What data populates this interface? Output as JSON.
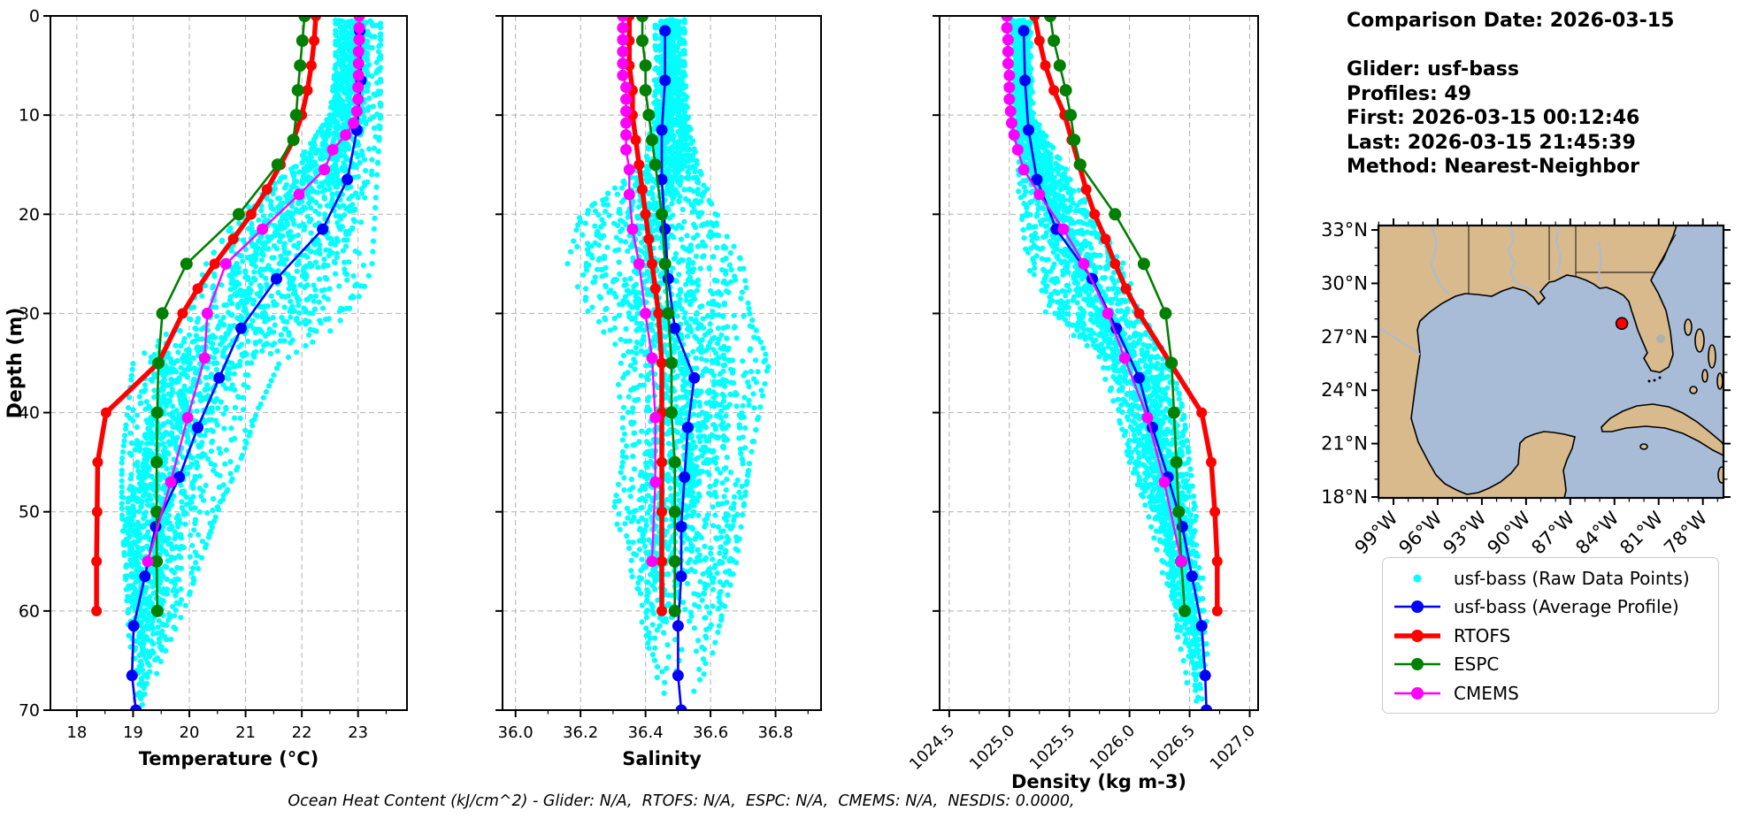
{
  "info": {
    "lines": [
      "Comparison Date: 2026-03-15",
      "",
      "Glider: usf-bass",
      "Profiles: 49",
      "First: 2026-03-15 00:12:46",
      "Last: 2026-03-15 21:45:39",
      "Method: Nearest-Neighbor"
    ]
  },
  "caption": "Ocean Heat Content (kJ/cm^2) - Glider: N/A,  RTOFS: N/A,  ESPC: N/A,  CMEMS: N/A,  NESDIS: 0.0000,",
  "legend": {
    "items": [
      {
        "label": "usf-bass (Raw Data Points)",
        "color": "#00ffff",
        "type": "scatter"
      },
      {
        "label": "usf-bass (Average Profile)",
        "color": "#0000ff",
        "type": "line",
        "lw": 2.6
      },
      {
        "label": "RTOFS",
        "color": "#ff0000",
        "type": "line",
        "lw": 5.5
      },
      {
        "label": "ESPC",
        "color": "#008000",
        "type": "line",
        "lw": 2.6
      },
      {
        "label": "CMEMS",
        "color": "#ff00ff",
        "type": "line",
        "lw": 2.4
      }
    ]
  },
  "map": {
    "lat_labels": [
      "33°N",
      "30°N",
      "27°N",
      "24°N",
      "21°N",
      "18°N"
    ],
    "lat_ticks": [
      33,
      30,
      27,
      24,
      21,
      18
    ],
    "lon_labels": [
      "99°W",
      "96°W",
      "93°W",
      "90°W",
      "87°W",
      "84°W",
      "81°W",
      "78°W"
    ],
    "lon_ticks": [
      99,
      96,
      93,
      90,
      87,
      84,
      81,
      78
    ],
    "extent": {
      "lon_west": 100.02,
      "lon_east": 76.6,
      "lat_north": 33.25,
      "lat_south": 17.95
    },
    "glider_marker": {
      "lon_w": 83.5,
      "lat_n": 27.75,
      "color": "#ff0000"
    },
    "land_color": "#d8ba8c",
    "water_color": "#a8bcd8",
    "lake_color": "#b0b0b0"
  },
  "chart_data": {
    "type": "line",
    "ylabel": "Depth (m)",
    "ylim": [
      0,
      70
    ],
    "yticks": [
      0,
      10,
      20,
      30,
      40,
      50,
      60,
      70
    ],
    "grid": "dashed",
    "profiles_count": 49,
    "series_meta": [
      {
        "key": "raw",
        "name": "usf-bass (Raw Data Points)",
        "color": "#00ffff"
      },
      {
        "key": "avg",
        "name": "usf-bass (Average Profile)",
        "color": "#0000ff"
      },
      {
        "key": "rtofs",
        "name": "RTOFS",
        "color": "#ff0000"
      },
      {
        "key": "espc",
        "name": "ESPC",
        "color": "#008000"
      },
      {
        "key": "cmems",
        "name": "CMEMS",
        "color": "#ff00ff"
      }
    ],
    "panels": [
      {
        "id": "temperature",
        "xlabel": "Temperature (°C)",
        "xlim": [
          17.53,
          23.87
        ],
        "xticks": [
          18,
          19,
          20,
          21,
          22,
          23
        ],
        "xtick_labels": [
          "18",
          "19",
          "20",
          "21",
          "22",
          "23"
        ],
        "xminor": 0.5,
        "rotate_xticklabels": false,
        "series": {
          "avg": {
            "depths": [
              1.5,
              6.5,
              11.5,
              16.5,
              21.5,
              26.5,
              31.5,
              36.5,
              41.5,
              46.5,
              51.5,
              56.5,
              61.5,
              66.5,
              70
            ],
            "values": [
              23.03,
              23.05,
              22.98,
              22.81,
              22.37,
              21.55,
              20.92,
              20.53,
              20.15,
              19.82,
              19.4,
              19.21,
              19.01,
              18.98,
              19.05
            ]
          },
          "rtofs": {
            "depths": [
              0,
              2.5,
              5,
              7.5,
              10,
              12.5,
              15,
              17.5,
              20,
              22.5,
              25,
              27.5,
              30,
              35,
              40,
              45,
              50,
              55,
              60
            ],
            "values": [
              22.25,
              22.22,
              22.17,
              22.1,
              22.0,
              21.85,
              21.62,
              21.38,
              21.1,
              20.78,
              20.45,
              20.15,
              19.88,
              19.45,
              18.52,
              18.37,
              18.36,
              18.35,
              18.35
            ]
          },
          "espc": {
            "depths": [
              0,
              2.5,
              5,
              7.5,
              10,
              12.5,
              15,
              20,
              25,
              30,
              35,
              40,
              45,
              50,
              55,
              60
            ],
            "values": [
              22.05,
              22.01,
              21.97,
              21.93,
              21.9,
              21.85,
              21.57,
              20.88,
              19.95,
              19.52,
              19.45,
              19.43,
              19.42,
              19.42,
              19.42,
              19.43
            ]
          },
          "cmems": {
            "depths": [
              0,
              1.2,
              2.4,
              3.6,
              4.8,
              6,
              7.2,
              8.4,
              9.6,
              10.8,
              12,
              13.5,
              15.5,
              18,
              21.5,
              25,
              30,
              34.5,
              40.5,
              47,
              55
            ],
            "values": [
              23.02,
              23.02,
              23.02,
              23.01,
              23.01,
              23.01,
              23.0,
              23.0,
              22.98,
              22.92,
              22.78,
              22.55,
              22.4,
              21.95,
              21.3,
              20.65,
              20.32,
              20.27,
              19.97,
              19.67,
              19.26
            ]
          }
        },
        "raw_envelope": {
          "depths": [
            0,
            5,
            10,
            15,
            20,
            25,
            30,
            35,
            40,
            45,
            50,
            55,
            60,
            65,
            70
          ],
          "min": [
            22.6,
            22.6,
            22.5,
            21.9,
            20.9,
            20.3,
            20.0,
            19.0,
            18.9,
            18.8,
            18.8,
            18.85,
            18.9,
            18.95,
            19.0
          ],
          "max": [
            23.4,
            23.4,
            23.4,
            23.35,
            23.3,
            23.25,
            23.0,
            21.6,
            21.2,
            20.9,
            20.5,
            20.2,
            19.9,
            19.5,
            19.2
          ]
        }
      },
      {
        "id": "salinity",
        "xlabel": "Salinity",
        "xlim": [
          35.96,
          36.94
        ],
        "xticks": [
          36.0,
          36.2,
          36.4,
          36.6,
          36.8
        ],
        "xtick_labels": [
          "36.0",
          "36.2",
          "36.4",
          "36.6",
          "36.8"
        ],
        "xminor": 0.1,
        "rotate_xticklabels": false,
        "series": {
          "avg": {
            "depths": [
              1.5,
              6.5,
              11.5,
              16.5,
              21.5,
              26.5,
              31.5,
              36.5,
              41.5,
              46.5,
              51.5,
              56.5,
              61.5,
              66.5,
              70
            ],
            "values": [
              36.46,
              36.46,
              36.45,
              36.45,
              36.46,
              36.47,
              36.49,
              36.55,
              36.53,
              36.52,
              36.51,
              36.51,
              36.5,
              36.5,
              36.51
            ]
          },
          "rtofs": {
            "depths": [
              0,
              2.5,
              5,
              7.5,
              10,
              12.5,
              15,
              17.5,
              20,
              22.5,
              25,
              27.5,
              30,
              35,
              40,
              45,
              50,
              55,
              60
            ],
            "values": [
              36.35,
              36.35,
              36.35,
              36.36,
              36.36,
              36.37,
              36.38,
              36.39,
              36.4,
              36.41,
              36.42,
              36.43,
              36.44,
              36.45,
              36.45,
              36.45,
              36.45,
              36.45,
              36.45
            ]
          },
          "espc": {
            "depths": [
              0,
              2.5,
              5,
              7.5,
              10,
              12.5,
              15,
              20,
              25,
              30,
              35,
              40,
              45,
              50,
              55,
              60
            ],
            "values": [
              36.39,
              36.39,
              36.4,
              36.4,
              36.41,
              36.42,
              36.43,
              36.45,
              36.46,
              36.47,
              36.48,
              36.48,
              36.49,
              36.49,
              36.49,
              36.49
            ]
          },
          "cmems": {
            "depths": [
              0,
              1.2,
              2.4,
              3.6,
              4.8,
              6,
              7.2,
              8.4,
              9.6,
              10.8,
              12,
              13.5,
              15.5,
              18,
              21.5,
              25,
              30,
              34.5,
              40.5,
              47,
              55
            ],
            "values": [
              36.33,
              36.33,
              36.33,
              36.33,
              36.33,
              36.33,
              36.34,
              36.34,
              36.34,
              36.34,
              36.34,
              36.34,
              36.35,
              36.35,
              36.36,
              36.38,
              36.4,
              36.42,
              36.43,
              36.43,
              36.42
            ]
          }
        },
        "raw_envelope": {
          "depths": [
            0,
            5,
            10,
            15,
            20,
            25,
            30,
            35,
            40,
            45,
            50,
            55,
            60,
            65,
            70
          ],
          "min": [
            36.43,
            36.43,
            36.42,
            36.4,
            36.2,
            36.16,
            36.22,
            36.3,
            36.33,
            36.33,
            36.3,
            36.35,
            36.38,
            36.42,
            36.45
          ],
          "max": [
            36.52,
            36.52,
            36.53,
            36.56,
            36.62,
            36.7,
            36.72,
            36.78,
            36.75,
            36.72,
            36.7,
            36.68,
            36.64,
            36.6,
            36.55
          ]
        }
      },
      {
        "id": "density",
        "xlabel": "Density (kg m-3)",
        "xlim": [
          1024.42,
          1027.07
        ],
        "xticks": [
          1024.5,
          1025.0,
          1025.5,
          1026.0,
          1026.5,
          1027.0
        ],
        "xtick_labels": [
          "1024.5",
          "1025.0",
          "1025.5",
          "1026.0",
          "1026.5",
          "1027.0"
        ],
        "xminor": 0.25,
        "rotate_xticklabels": true,
        "series": {
          "avg": {
            "depths": [
              1.5,
              6.5,
              11.5,
              16.5,
              21.5,
              26.5,
              31.5,
              36.5,
              41.5,
              46.5,
              51.5,
              56.5,
              61.5,
              66.5,
              70
            ],
            "values": [
              1025.12,
              1025.13,
              1025.16,
              1025.23,
              1025.39,
              1025.69,
              1025.89,
              1026.08,
              1026.19,
              1026.32,
              1026.44,
              1026.52,
              1026.6,
              1026.63,
              1026.64
            ]
          },
          "rtofs": {
            "depths": [
              0,
              2.5,
              5,
              7.5,
              10,
              12.5,
              15,
              17.5,
              20,
              22.5,
              25,
              27.5,
              30,
              35,
              40,
              45,
              50,
              55,
              60
            ],
            "values": [
              1025.21,
              1025.25,
              1025.3,
              1025.37,
              1025.46,
              1025.52,
              1025.58,
              1025.64,
              1025.71,
              1025.8,
              1025.88,
              1025.97,
              1026.08,
              1026.34,
              1026.6,
              1026.68,
              1026.71,
              1026.73,
              1026.73
            ]
          },
          "espc": {
            "depths": [
              0,
              2.5,
              5,
              7.5,
              10,
              12.5,
              15,
              20,
              25,
              30,
              35,
              40,
              45,
              50,
              55,
              60
            ],
            "values": [
              1025.34,
              1025.37,
              1025.42,
              1025.47,
              1025.51,
              1025.54,
              1025.59,
              1025.88,
              1026.12,
              1026.3,
              1026.35,
              1026.37,
              1026.39,
              1026.41,
              1026.43,
              1026.46
            ]
          },
          "cmems": {
            "depths": [
              0,
              1.2,
              2.4,
              3.6,
              4.8,
              6,
              7.2,
              8.4,
              9.6,
              10.8,
              12,
              13.5,
              15.5,
              18,
              21.5,
              25,
              30,
              34.5,
              40.5,
              47,
              55
            ],
            "values": [
              1024.98,
              1024.98,
              1024.99,
              1024.99,
              1024.99,
              1025.0,
              1025.0,
              1025.0,
              1025.01,
              1025.02,
              1025.04,
              1025.07,
              1025.12,
              1025.25,
              1025.45,
              1025.62,
              1025.82,
              1025.96,
              1026.15,
              1026.29,
              1026.43
            ]
          }
        },
        "raw_envelope": {
          "depths": [
            0,
            5,
            10,
            15,
            20,
            25,
            30,
            35,
            40,
            45,
            50,
            55,
            60,
            65,
            70
          ],
          "min": [
            1025.02,
            1025.02,
            1025.02,
            1025.05,
            1025.1,
            1025.15,
            1025.3,
            1025.75,
            1025.9,
            1026.0,
            1026.15,
            1026.25,
            1026.35,
            1026.45,
            1026.5
          ],
          "max": [
            1025.18,
            1025.18,
            1025.2,
            1025.45,
            1025.7,
            1025.95,
            1026.1,
            1026.35,
            1026.45,
            1026.5,
            1026.55,
            1026.6,
            1026.65,
            1026.68,
            1026.66
          ]
        }
      }
    ]
  }
}
